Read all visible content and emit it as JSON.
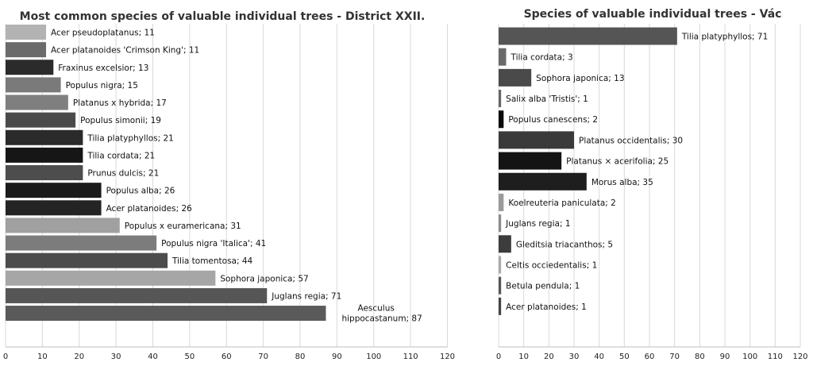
{
  "chart_data": [
    {
      "type": "bar",
      "orientation": "horizontal",
      "title": "Most common species  of valuable individual trees - District XXII.",
      "xlim": [
        0,
        120
      ],
      "x_ticks": [
        0,
        10,
        20,
        30,
        40,
        50,
        60,
        70,
        80,
        90,
        100,
        110,
        120
      ],
      "grid": true,
      "legend": "none",
      "categories": [
        "Acer pseudoplatanus",
        "Acer platanoides 'Crimson King'",
        "Fraxinus excelsior",
        "Populus nigra",
        "Platanus x hybrida",
        "Populus simonii",
        "Tilia platyphyllos",
        "Tilia cordata",
        "Prunus dulcis",
        "Populus alba",
        "Acer platanoides",
        "Populus x euramericana",
        "Populus nigra 'Italica'",
        "Tilia tomentosa",
        "Sophora japonica",
        "Juglans regia",
        "Aesculus hippocastanum"
      ],
      "values": [
        11,
        11,
        13,
        15,
        17,
        19,
        21,
        21,
        21,
        26,
        26,
        31,
        41,
        44,
        57,
        71,
        87
      ],
      "data_labels": [
        "Acer pseudoplatanus; 11",
        "Acer platanoides 'Crimson King'; 11",
        "Fraxinus excelsior; 13",
        "Populus nigra; 15",
        "Platanus x hybrida; 17",
        "Populus simonii; 19",
        "Tilia platyphyllos; 21",
        "Tilia cordata; 21",
        "Prunus dulcis; 21",
        "Populus alba; 26",
        "Acer platanoides; 26",
        "Populus x euramericana; 31",
        "Populus nigra 'Italica'; 41",
        "Tilia tomentosa; 44",
        "Sophora japonica; 57",
        "Juglans regia; 71",
        "Aesculus\nhippocastanum; 87"
      ],
      "colors": [
        "#b3b3b3",
        "#6b6b6b",
        "#2b2b2b",
        "#7a7a7a",
        "#7f7f7f",
        "#4a4a4a",
        "#2a2a2a",
        "#161616",
        "#4d4d4d",
        "#1a1a1a",
        "#242424",
        "#a0a0a0",
        "#7c7c7c",
        "#4c4c4c",
        "#a6a6a6",
        "#565656",
        "#5a5a5a"
      ]
    },
    {
      "type": "bar",
      "orientation": "horizontal",
      "title": "Species of valuable individual trees - Vác",
      "xlim": [
        0,
        120
      ],
      "x_ticks": [
        0,
        10,
        20,
        30,
        40,
        50,
        60,
        70,
        80,
        90,
        100,
        110,
        120
      ],
      "grid": true,
      "legend": "none",
      "categories": [
        "Tilia platyphyllos",
        "Tilia cordata",
        "Sophora japonica",
        "Salix alba 'Tristis'",
        "Populus canescens",
        "Platanus occidentalis",
        "Platanus × acerifolia",
        "Morus alba",
        "Koelreuteria paniculata",
        "Juglans regia",
        "Gleditsia triacanthos",
        "Celtis occiedentalis",
        "Betula pendula",
        "Acer platanoides"
      ],
      "values": [
        71,
        3,
        13,
        1,
        2,
        30,
        25,
        35,
        2,
        1,
        5,
        1,
        1,
        1
      ],
      "data_labels": [
        "Tilia platyphyllos; 71",
        "Tilia cordata; 3",
        "Sophora japonica; 13",
        "Salix alba 'Tristis'; 1",
        "Populus canescens; 2",
        "Platanus occidentalis; 30",
        "Platanus × acerifolia; 25",
        "Morus alba; 35",
        "Koelreuteria paniculata; 2",
        "Juglans regia; 1",
        "Gleditsia triacanthos; 5",
        "Celtis occiedentalis; 1",
        "Betula pendula; 1",
        "Acer platanoides; 1"
      ],
      "colors": [
        "#555555",
        "#6a6a6a",
        "#4a4a4a",
        "#666666",
        "#0a0a0a",
        "#3a3a3a",
        "#141414",
        "#1e1e1e",
        "#9a9a9a",
        "#8c8c8c",
        "#3c3c3c",
        "#aaaaaa",
        "#555555",
        "#444444"
      ]
    }
  ]
}
